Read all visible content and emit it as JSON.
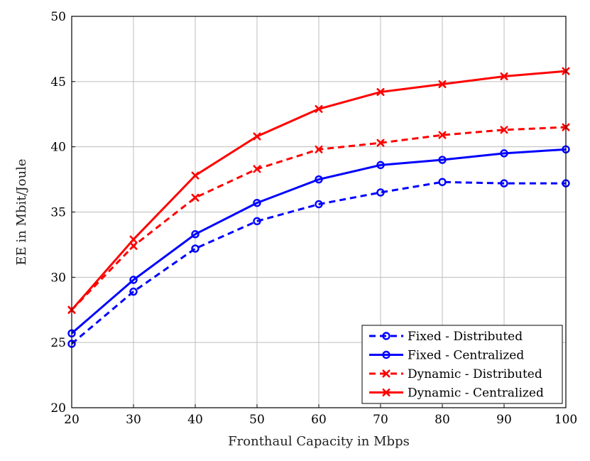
{
  "chart_data": {
    "type": "line",
    "title": "",
    "xlabel": "Fronthaul Capacity in Mbps",
    "ylabel": "EE in Mbit/Joule",
    "xlim": [
      20,
      100
    ],
    "ylim": [
      20,
      50
    ],
    "x_ticks": [
      20,
      30,
      40,
      50,
      60,
      70,
      80,
      90,
      100
    ],
    "y_ticks": [
      20,
      25,
      30,
      35,
      40,
      45,
      50
    ],
    "grid": true,
    "legend_position": "bottom-right",
    "x": [
      20,
      30,
      40,
      50,
      60,
      70,
      80,
      90,
      100
    ],
    "series": [
      {
        "name": "Fixed - Distributed",
        "color": "#0000ff",
        "line_style": "dashed",
        "marker": "circle",
        "values": [
          24.9,
          28.9,
          32.2,
          34.3,
          35.6,
          36.5,
          37.3,
          37.2,
          37.2
        ]
      },
      {
        "name": "Fixed - Centralized",
        "color": "#0000ff",
        "line_style": "solid",
        "marker": "circle",
        "values": [
          25.7,
          29.8,
          33.3,
          35.7,
          37.5,
          38.6,
          39.0,
          39.5,
          39.8
        ]
      },
      {
        "name": "Dynamic - Distributed",
        "color": "#ff0000",
        "line_style": "dashed",
        "marker": "x",
        "values": [
          27.5,
          32.4,
          36.1,
          38.3,
          39.8,
          40.3,
          40.9,
          41.3,
          41.5
        ]
      },
      {
        "name": "Dynamic - Centralized",
        "color": "#ff0000",
        "line_style": "solid",
        "marker": "x",
        "values": [
          27.5,
          32.9,
          37.8,
          40.8,
          42.9,
          44.2,
          44.8,
          45.4,
          45.8
        ]
      }
    ]
  }
}
